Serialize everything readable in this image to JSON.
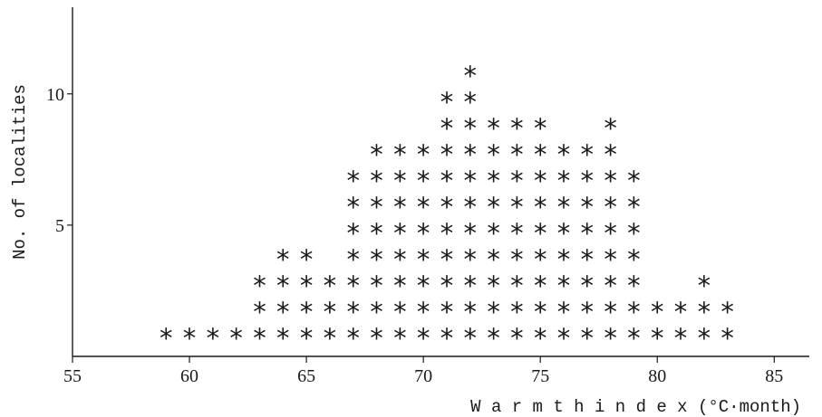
{
  "chart_data": {
    "type": "scatter",
    "style": "asterisk histogram (one * per locality)",
    "xlabel": "W a r m t h   i n d e x  (°C·month)",
    "ylabel": "No. of localities",
    "x_ticks": [
      55,
      60,
      65,
      70,
      75,
      80,
      85
    ],
    "y_ticks": [
      5,
      10
    ],
    "xlim": [
      55,
      86.5
    ],
    "ylim": [
      0,
      13.3
    ],
    "grid": false,
    "marker": "*",
    "counts": [
      {
        "x": 59,
        "y": 1
      },
      {
        "x": 60,
        "y": 1
      },
      {
        "x": 61,
        "y": 1
      },
      {
        "x": 62,
        "y": 1
      },
      {
        "x": 63,
        "y": 3
      },
      {
        "x": 64,
        "y": 4
      },
      {
        "x": 65,
        "y": 4
      },
      {
        "x": 66,
        "y": 3
      },
      {
        "x": 67,
        "y": 7
      },
      {
        "x": 68,
        "y": 8
      },
      {
        "x": 69,
        "y": 8
      },
      {
        "x": 70,
        "y": 8
      },
      {
        "x": 71,
        "y": 10
      },
      {
        "x": 72,
        "y": 11
      },
      {
        "x": 73,
        "y": 9
      },
      {
        "x": 74,
        "y": 9
      },
      {
        "x": 75,
        "y": 9
      },
      {
        "x": 76,
        "y": 8
      },
      {
        "x": 77,
        "y": 8
      },
      {
        "x": 78,
        "y": 9
      },
      {
        "x": 79,
        "y": 7
      },
      {
        "x": 80,
        "y": 2
      },
      {
        "x": 81,
        "y": 2
      },
      {
        "x": 82,
        "y": 3
      },
      {
        "x": 83,
        "y": 2
      }
    ]
  }
}
